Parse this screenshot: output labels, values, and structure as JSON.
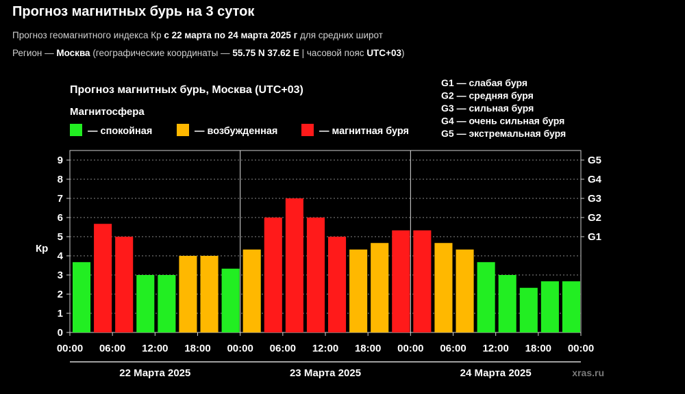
{
  "header": {
    "title": "Прогноз магнитных бурь на 3 суток",
    "subtitle_pre": "Прогноз геомагнитного индекса Кр ",
    "subtitle_bold": "с 22 марта по 24 марта 2025 г",
    "subtitle_post": " для средних широт",
    "region_pre": "Регион — ",
    "region_name": "Москва",
    "region_mid": " (географические координаты — ",
    "region_coords": "55.75 N 37.62 E",
    "region_tz_pre": " | часовой пояс ",
    "region_tz": "UTC+03",
    "region_post": ")"
  },
  "colors": {
    "calm": "#22ee22",
    "excited": "#ffb800",
    "storm": "#ff1a1a",
    "background": "#000000",
    "text": "#ffffff"
  },
  "chart_data": {
    "type": "bar",
    "title": "Прогноз магнитных бурь, Москва (UTC+03)",
    "legend_title": "Магнитосфера",
    "legend": [
      {
        "label": "— спокойная",
        "status": "calm"
      },
      {
        "label": "— возбужденная",
        "status": "excited"
      },
      {
        "label": "— магнитная буря",
        "status": "storm"
      }
    ],
    "g_scale_legend": [
      "G1 — слабая буря",
      "G2 — средняя буря",
      "G3 — сильная буря",
      "G4 — очень сильная буря",
      "G5 — экстремальная буря"
    ],
    "ylabel": "Кр",
    "ylim": [
      0,
      9
    ],
    "yticks": [
      "0",
      "1",
      "2",
      "3",
      "4",
      "5",
      "6",
      "7",
      "8",
      "9"
    ],
    "g_levels": [
      {
        "label": "G1",
        "kp": 5
      },
      {
        "label": "G2",
        "kp": 6
      },
      {
        "label": "G3",
        "kp": 7
      },
      {
        "label": "G4",
        "kp": 8
      },
      {
        "label": "G5",
        "kp": 9
      }
    ],
    "xticks": [
      "00:00",
      "06:00",
      "12:00",
      "18:00",
      "00:00",
      "06:00",
      "12:00",
      "18:00",
      "00:00",
      "06:00",
      "12:00",
      "18:00",
      "00:00"
    ],
    "days": [
      "22 Марта 2025",
      "23 Марта 2025",
      "24 Марта 2025"
    ],
    "values": [
      3.67,
      5.67,
      5.0,
      3.0,
      3.0,
      4.0,
      4.0,
      3.33,
      4.33,
      6.0,
      7.0,
      6.0,
      5.0,
      4.33,
      4.67,
      5.33,
      5.33,
      4.67,
      4.33,
      3.67,
      3.0,
      2.33,
      2.67,
      2.67
    ],
    "statuses": [
      "calm",
      "storm",
      "storm",
      "calm",
      "calm",
      "excited",
      "excited",
      "calm",
      "excited",
      "storm",
      "storm",
      "storm",
      "storm",
      "excited",
      "excited",
      "storm",
      "storm",
      "excited",
      "excited",
      "calm",
      "calm",
      "calm",
      "calm",
      "calm"
    ],
    "grid": "dotted horizontal",
    "watermark": "xras.ru"
  }
}
